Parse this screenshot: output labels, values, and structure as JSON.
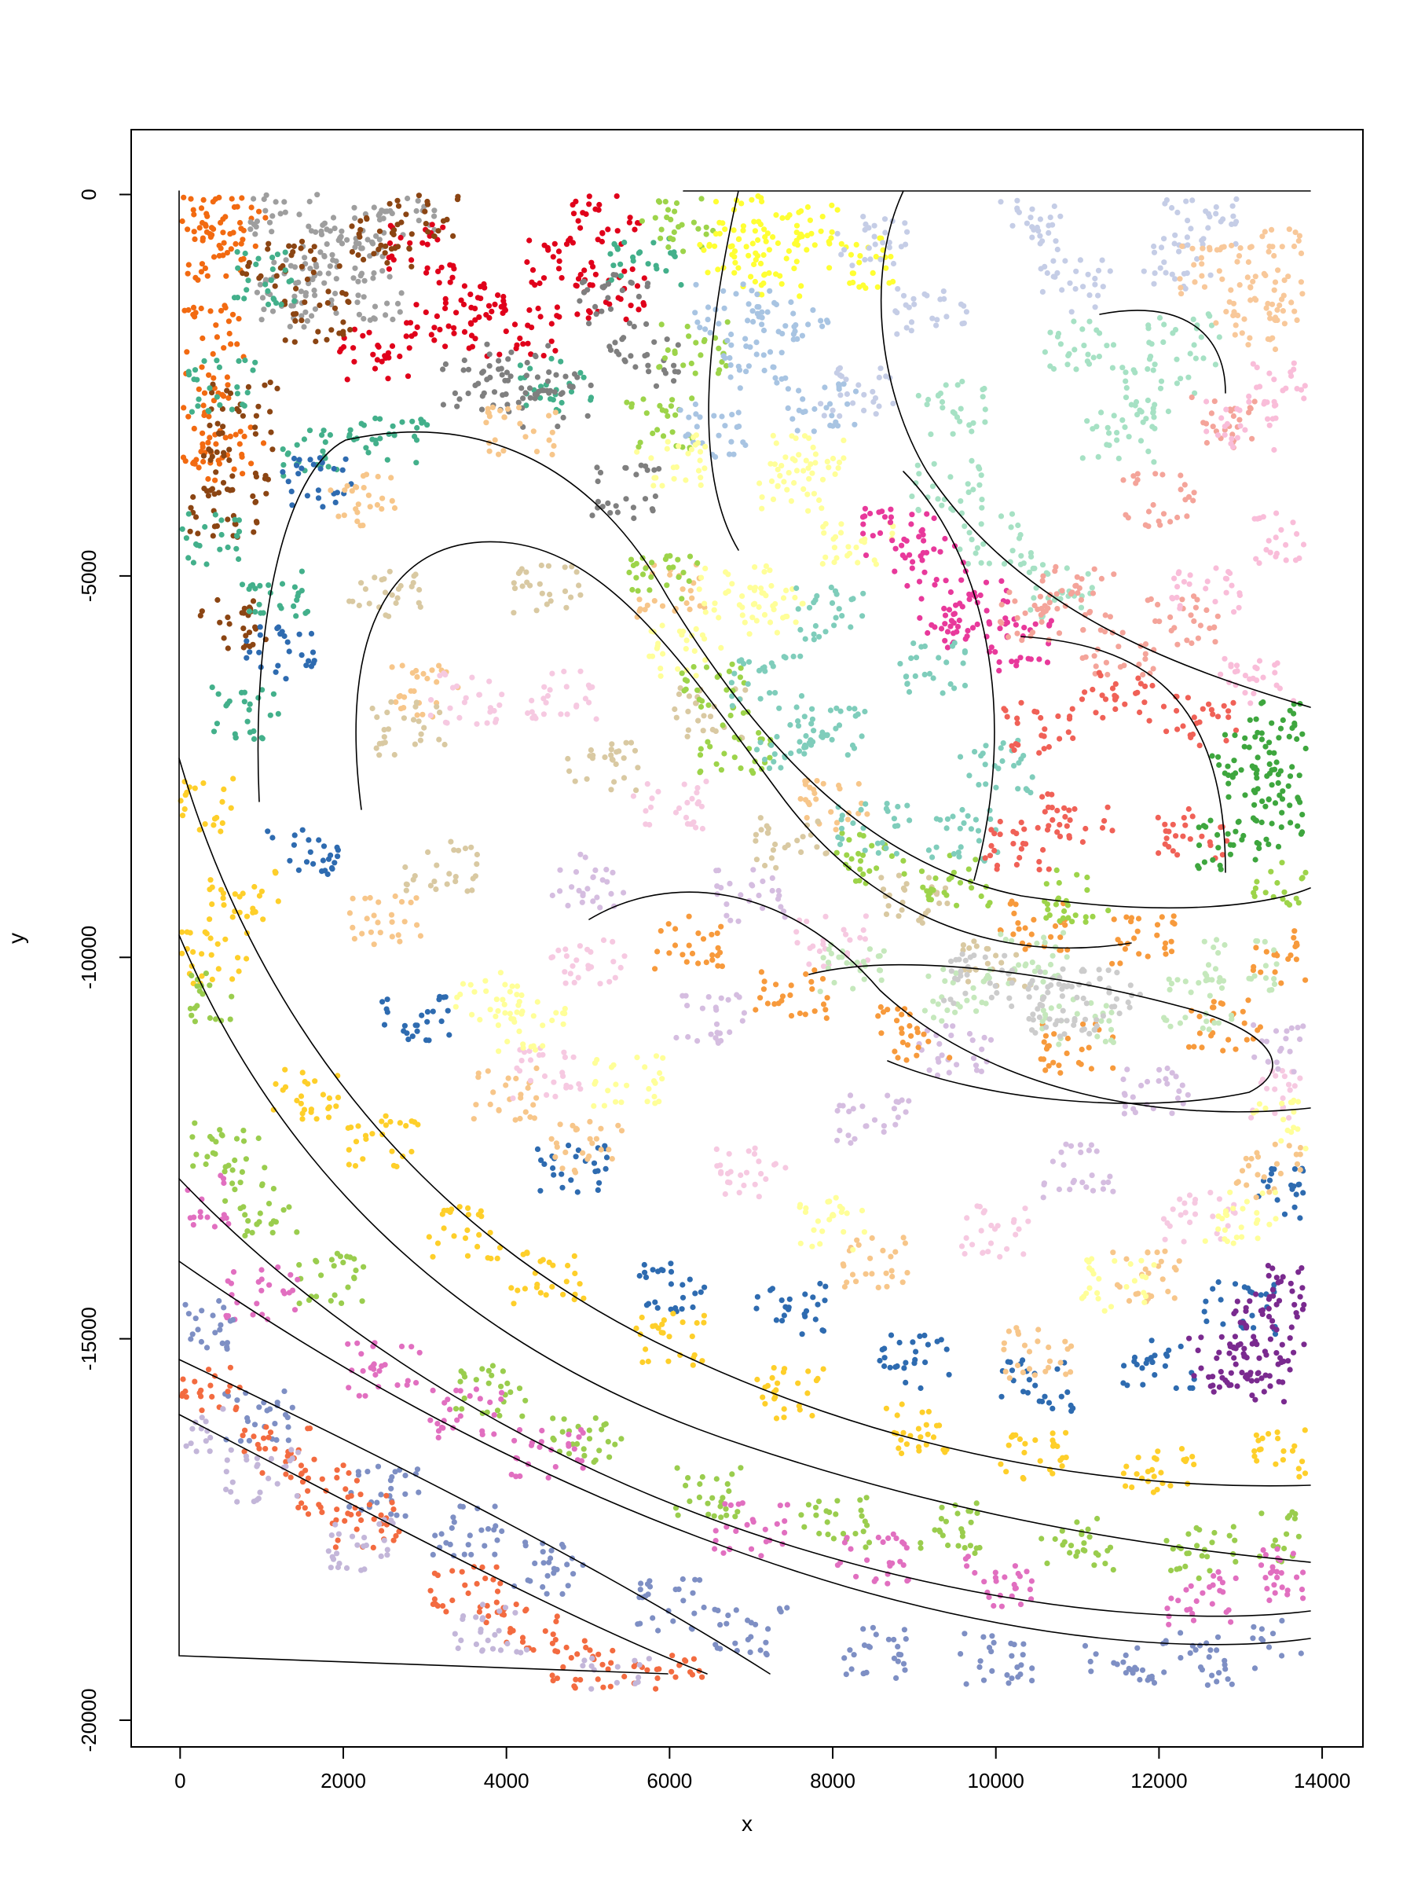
{
  "chart_data": {
    "type": "scatter",
    "title": "",
    "xlabel": "x",
    "ylabel": "y",
    "xlim": [
      -600,
      14500
    ],
    "ylim": [
      -20350,
      850
    ],
    "xticks": [
      0,
      2000,
      4000,
      6000,
      8000,
      10000,
      12000,
      14000
    ],
    "yticks": [
      0,
      -5000,
      -10000,
      -15000,
      -20000
    ],
    "xtick_labels": [
      "0",
      "2000",
      "4000",
      "6000",
      "8000",
      "10000",
      "12000",
      "14000"
    ],
    "ytick_labels": [
      "0",
      "-5000",
      "-10000",
      "-15000",
      "-20000"
    ],
    "grid": false,
    "legend": "none",
    "description_of_series": "Cell centroids colored by tissue layer/region; each region outlined by a black boundary polygon.",
    "regions": [
      {
        "color": "#f26a11",
        "points": [
          [
            100,
            -300
          ],
          [
            600,
            -300
          ],
          [
            600,
            -3400
          ],
          [
            100,
            -3400
          ],
          [
            350,
            -1800
          ],
          [
            500,
            -800
          ],
          [
            150,
            -2600
          ]
        ]
      },
      {
        "color": "#9e9e9e",
        "points": [
          [
            1300,
            -200
          ],
          [
            2700,
            -200
          ],
          [
            2300,
            -1300
          ],
          [
            1300,
            -1400
          ],
          [
            1800,
            -800
          ],
          [
            2100,
            -500
          ],
          [
            1500,
            -1100
          ]
        ]
      },
      {
        "color": "#e0001a",
        "points": [
          [
            3000,
            -700
          ],
          [
            5200,
            -300
          ],
          [
            5300,
            -1300
          ],
          [
            4200,
            -1800
          ],
          [
            2400,
            -2100
          ],
          [
            3600,
            -1400
          ],
          [
            4700,
            -900
          ],
          [
            3200,
            -1700
          ]
        ]
      },
      {
        "color": "#8b4513",
        "points": [
          [
            3000,
            -200
          ],
          [
            1700,
            -1600
          ],
          [
            800,
            -2800
          ],
          [
            500,
            -4200
          ],
          [
            600,
            -5600
          ],
          [
            1200,
            -900
          ],
          [
            2400,
            -600
          ],
          [
            700,
            -3600
          ]
        ]
      },
      {
        "color": "#43b08b",
        "points": [
          [
            1000,
            -1100
          ],
          [
            500,
            -2500
          ],
          [
            300,
            -4500
          ],
          [
            800,
            -6800
          ],
          [
            1700,
            -3400
          ],
          [
            2600,
            -3200
          ],
          [
            4600,
            -2500
          ],
          [
            5700,
            -900
          ],
          [
            1200,
            -5200
          ]
        ]
      },
      {
        "color": "#7f7f7f",
        "points": [
          [
            5300,
            -1400
          ],
          [
            4600,
            -2700
          ],
          [
            5500,
            -3900
          ],
          [
            5700,
            -2200
          ],
          [
            4100,
            -2300
          ],
          [
            3600,
            -2500
          ]
        ]
      },
      {
        "color": "#2e6bb0",
        "points": [
          [
            1700,
            -3800
          ],
          [
            1200,
            -6000
          ],
          [
            1500,
            -8600
          ],
          [
            2900,
            -10800
          ],
          [
            4800,
            -12800
          ],
          [
            7500,
            -14600
          ],
          [
            10500,
            -15600
          ],
          [
            13000,
            -14600
          ],
          [
            13600,
            -13100
          ],
          [
            12000,
            -15300
          ],
          [
            9000,
            -15300
          ],
          [
            6000,
            -14300
          ]
        ]
      },
      {
        "color": "#f7c68a",
        "points": [
          [
            2200,
            -4000
          ],
          [
            4200,
            -3100
          ],
          [
            6000,
            -5200
          ],
          [
            8000,
            -8000
          ],
          [
            3000,
            -6500
          ],
          [
            2500,
            -9500
          ],
          [
            5000,
            -12500
          ],
          [
            8500,
            -14000
          ],
          [
            11800,
            -14200
          ],
          [
            13400,
            -12800
          ],
          [
            10500,
            -15200
          ],
          [
            4000,
            -11800
          ]
        ]
      },
      {
        "color": "#d9c9a2",
        "points": [
          [
            2500,
            -5200
          ],
          [
            4500,
            -5200
          ],
          [
            6500,
            -6800
          ],
          [
            9000,
            -9200
          ],
          [
            10000,
            -10100
          ],
          [
            2800,
            -7000
          ],
          [
            3200,
            -8800
          ],
          [
            5200,
            -7500
          ],
          [
            7500,
            -8500
          ]
        ]
      },
      {
        "color": "#f6c9e1",
        "points": [
          [
            3500,
            -6600
          ],
          [
            4700,
            -6600
          ],
          [
            6000,
            -8000
          ],
          [
            8000,
            -9800
          ],
          [
            5000,
            -10000
          ],
          [
            4500,
            -11500
          ],
          [
            7000,
            -12800
          ],
          [
            10000,
            -13600
          ],
          [
            12500,
            -13400
          ],
          [
            13500,
            -11800
          ]
        ]
      },
      {
        "color": "#ffff99",
        "points": [
          [
            3800,
            -10500
          ],
          [
            5500,
            -11600
          ],
          [
            8000,
            -13500
          ],
          [
            11500,
            -14300
          ],
          [
            13000,
            -13400
          ],
          [
            13600,
            -12200
          ],
          [
            4300,
            -10900
          ]
        ]
      },
      {
        "color": "#d5bde0",
        "points": [
          [
            5000,
            -9000
          ],
          [
            7000,
            -9200
          ],
          [
            9500,
            -11200
          ],
          [
            12000,
            -11800
          ],
          [
            13600,
            -11200
          ],
          [
            6500,
            -10800
          ],
          [
            8500,
            -12100
          ],
          [
            11000,
            -12800
          ]
        ]
      },
      {
        "color": "#f79a3c",
        "points": [
          [
            6200,
            -9800
          ],
          [
            7500,
            -10500
          ],
          [
            9000,
            -11000
          ],
          [
            11000,
            -11200
          ],
          [
            12800,
            -10900
          ],
          [
            13600,
            -10000
          ],
          [
            10500,
            -9600
          ],
          [
            11800,
            -9800
          ]
        ]
      },
      {
        "color": "#c5e8bc",
        "points": [
          [
            8200,
            -10100
          ],
          [
            9500,
            -10500
          ],
          [
            11000,
            -10800
          ],
          [
            12500,
            -10600
          ],
          [
            13000,
            -10100
          ],
          [
            10500,
            -10000
          ]
        ]
      },
      {
        "color": "#cccccc",
        "points": [
          [
            9800,
            -10300
          ],
          [
            10500,
            -10500
          ],
          [
            11400,
            -10500
          ],
          [
            10800,
            -10700
          ]
        ]
      },
      {
        "color": "#9dd44a",
        "points": [
          [
            6100,
            -400
          ],
          [
            5900,
            -3000
          ],
          [
            5900,
            -5000
          ],
          [
            6800,
            -7300
          ],
          [
            8500,
            -8700
          ],
          [
            11000,
            -9200
          ],
          [
            13600,
            -9000
          ],
          [
            6300,
            -2000
          ],
          [
            6600,
            -6500
          ],
          [
            9500,
            -9000
          ]
        ]
      },
      {
        "color": "#ffff33",
        "points": [
          [
            7000,
            -300
          ],
          [
            7800,
            -400
          ],
          [
            8300,
            -900
          ],
          [
            7200,
            -1000
          ],
          [
            6800,
            -700
          ]
        ]
      },
      {
        "color": "#a8c4e2",
        "points": [
          [
            6700,
            -1500
          ],
          [
            7500,
            -1600
          ],
          [
            7900,
            -2800
          ],
          [
            6500,
            -3100
          ],
          [
            7000,
            -2200
          ]
        ]
      },
      {
        "color": "#c5cde6",
        "points": [
          [
            8500,
            -600
          ],
          [
            10500,
            -400
          ],
          [
            12500,
            -400
          ],
          [
            9200,
            -1500
          ],
          [
            11000,
            -1200
          ],
          [
            8300,
            -2600
          ],
          [
            12200,
            -900
          ]
        ]
      },
      {
        "color": "#ffff99",
        "points": [
          [
            6000,
            -3500
          ],
          [
            7500,
            -3800
          ],
          [
            8300,
            -4500
          ],
          [
            6800,
            -5200
          ],
          [
            6200,
            -6000
          ],
          [
            7300,
            -5500
          ],
          [
            7700,
            -3500
          ]
        ]
      },
      {
        "color": "#a6e1c4",
        "points": [
          [
            9500,
            -2800
          ],
          [
            11000,
            -2000
          ],
          [
            12300,
            -1900
          ],
          [
            11500,
            -3200
          ],
          [
            10000,
            -4500
          ],
          [
            10800,
            -5200
          ],
          [
            9400,
            -3800
          ],
          [
            12000,
            -2600
          ]
        ]
      },
      {
        "color": "#e8399b",
        "points": [
          [
            8800,
            -4400
          ],
          [
            9200,
            -4800
          ],
          [
            9700,
            -5400
          ],
          [
            10300,
            -5900
          ],
          [
            9500,
            -5600
          ]
        ]
      },
      {
        "color": "#7fcdbb",
        "points": [
          [
            7200,
            -6400
          ],
          [
            8000,
            -5500
          ],
          [
            9200,
            -6200
          ],
          [
            10000,
            -7500
          ],
          [
            8500,
            -8300
          ],
          [
            7500,
            -7200
          ],
          [
            9600,
            -8400
          ],
          [
            8100,
            -7000
          ]
        ]
      },
      {
        "color": "#f4a49a",
        "points": [
          [
            11000,
            -5200
          ],
          [
            12000,
            -4000
          ],
          [
            12800,
            -3000
          ],
          [
            12300,
            -5600
          ],
          [
            11500,
            -6000
          ],
          [
            10500,
            -5500
          ]
        ]
      },
      {
        "color": "#f9bdd9",
        "points": [
          [
            13000,
            -3000
          ],
          [
            13500,
            -2400
          ],
          [
            13600,
            -4500
          ],
          [
            12600,
            -5200
          ],
          [
            13200,
            -6400
          ]
        ]
      },
      {
        "color": "#f06157",
        "points": [
          [
            10500,
            -7000
          ],
          [
            11500,
            -6600
          ],
          [
            12500,
            -6900
          ],
          [
            11000,
            -8200
          ],
          [
            12400,
            -8400
          ],
          [
            10300,
            -8500
          ]
        ]
      },
      {
        "color": "#3ea63e",
        "points": [
          [
            13000,
            -7300
          ],
          [
            13500,
            -7000
          ],
          [
            13600,
            -8200
          ],
          [
            12900,
            -8500
          ],
          [
            13300,
            -7800
          ]
        ]
      },
      {
        "color": "#f8c89a",
        "points": [
          [
            12700,
            -1000
          ],
          [
            13300,
            -800
          ],
          [
            13600,
            -1300
          ],
          [
            13100,
            -1700
          ]
        ]
      },
      {
        "color": "#7a2a8f",
        "points": [
          [
            12800,
            -15300
          ],
          [
            13300,
            -14800
          ],
          [
            13600,
            -14300
          ],
          [
            13500,
            -15300
          ],
          [
            13100,
            -15500
          ]
        ]
      },
      {
        "color": "#fecf2a",
        "points": [
          [
            200,
            -8000
          ],
          [
            400,
            -10000
          ],
          [
            1500,
            -11800
          ],
          [
            3500,
            -13600
          ],
          [
            6000,
            -15000
          ],
          [
            9000,
            -16200
          ],
          [
            12000,
            -16700
          ],
          [
            13600,
            -16500
          ],
          [
            800,
            -9200
          ],
          [
            2500,
            -12400
          ],
          [
            4500,
            -14200
          ],
          [
            7500,
            -15700
          ],
          [
            10500,
            -16500
          ]
        ]
      },
      {
        "color": "#9acd4e",
        "points": [
          [
            200,
            -10500
          ],
          [
            600,
            -12500
          ],
          [
            1800,
            -14200
          ],
          [
            3800,
            -15700
          ],
          [
            6500,
            -17000
          ],
          [
            9500,
            -17500
          ],
          [
            12500,
            -17800
          ],
          [
            13600,
            -17600
          ],
          [
            1000,
            -13300
          ],
          [
            5000,
            -16300
          ],
          [
            8000,
            -17400
          ],
          [
            11000,
            -17700
          ]
        ]
      },
      {
        "color": "#e16fc0",
        "points": [
          [
            200,
            -13200
          ],
          [
            1000,
            -14400
          ],
          [
            2500,
            -15400
          ],
          [
            4500,
            -16500
          ],
          [
            7000,
            -17500
          ],
          [
            10000,
            -18200
          ],
          [
            12500,
            -18400
          ],
          [
            13600,
            -18100
          ],
          [
            3500,
            -16000
          ],
          [
            8500,
            -17900
          ]
        ]
      },
      {
        "color": "#7e8fc4",
        "points": [
          [
            200,
            -14800
          ],
          [
            1000,
            -16000
          ],
          [
            2500,
            -17000
          ],
          [
            4500,
            -18000
          ],
          [
            7000,
            -18800
          ],
          [
            10000,
            -19200
          ],
          [
            12500,
            -19200
          ],
          [
            13600,
            -19000
          ],
          [
            3500,
            -17500
          ],
          [
            6000,
            -18500
          ],
          [
            8500,
            -19100
          ],
          [
            11500,
            -19300
          ]
        ]
      },
      {
        "color": "#f36b40",
        "points": [
          [
            300,
            -15600
          ],
          [
            1200,
            -16500
          ],
          [
            2300,
            -17400
          ],
          [
            3500,
            -18300
          ],
          [
            5000,
            -19300
          ],
          [
            6000,
            -19500
          ],
          [
            4200,
            -18800
          ],
          [
            1800,
            -17000
          ]
        ]
      },
      {
        "color": "#c3b6d9",
        "points": [
          [
            100,
            -16200
          ],
          [
            1000,
            -16800
          ],
          [
            2200,
            -17700
          ],
          [
            3800,
            -18800
          ],
          [
            5300,
            -19500
          ]
        ]
      }
    ]
  }
}
